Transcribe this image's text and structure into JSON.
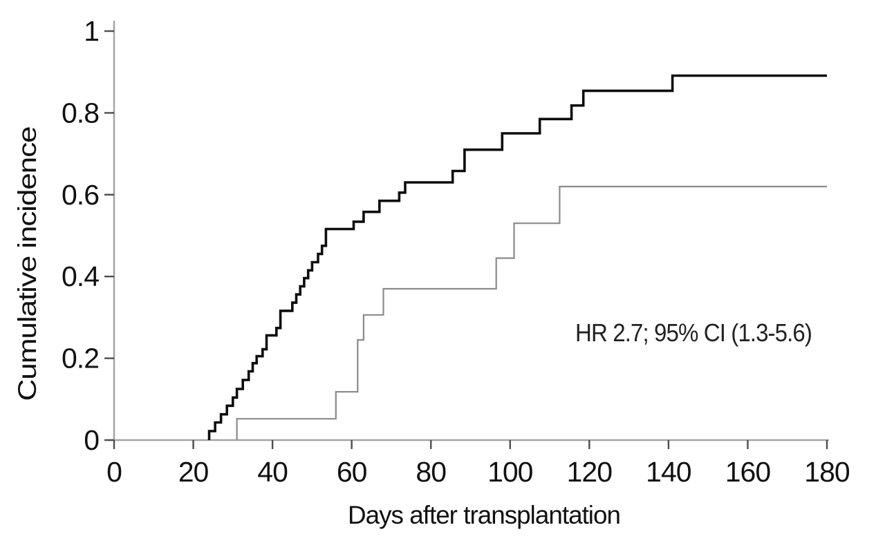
{
  "figure": {
    "background": "#ffffff"
  },
  "chart_data": {
    "type": "line",
    "subtype": "step-function-cumulative-incidence",
    "title": "",
    "xlabel": "Days after transplantation",
    "ylabel": "Cumulative incidence",
    "xlim": [
      0,
      180
    ],
    "ylim": [
      0,
      1
    ],
    "x_ticks": [
      0,
      20,
      40,
      60,
      80,
      100,
      120,
      140,
      160,
      180
    ],
    "x_tick_labels": [
      "0",
      "20",
      "40",
      "60",
      "80",
      "100",
      "120",
      "140",
      "160",
      "180"
    ],
    "y_ticks": [
      0,
      0.2,
      0.4,
      0.6,
      0.8,
      1
    ],
    "y_tick_labels": [
      "0",
      "0.2",
      "0.4",
      "0.6",
      "0.8",
      "1"
    ],
    "grid": false,
    "legend": "none",
    "annotation": {
      "text": "HR 2.7; 95% CI (1.3-5.6)",
      "x_day": 146,
      "y_value": 0.263
    },
    "axis_color": "#a3a3a3",
    "tick_color": "#4d4d4d",
    "series": [
      {
        "name": "higher-incidence-group",
        "color": "#0d0d0d",
        "stroke_width": 3.6,
        "start_day": 24,
        "end_day": 180,
        "steps": [
          [
            24,
            0.022
          ],
          [
            25.5,
            0.043
          ],
          [
            27,
            0.063
          ],
          [
            28.5,
            0.084
          ],
          [
            30,
            0.104
          ],
          [
            31,
            0.125
          ],
          [
            32.5,
            0.147
          ],
          [
            34,
            0.168
          ],
          [
            35,
            0.188
          ],
          [
            36,
            0.205
          ],
          [
            37.5,
            0.222
          ],
          [
            38.5,
            0.256
          ],
          [
            41,
            0.274
          ],
          [
            42,
            0.316
          ],
          [
            45,
            0.336
          ],
          [
            46,
            0.356
          ],
          [
            47,
            0.376
          ],
          [
            48,
            0.396
          ],
          [
            49,
            0.415
          ],
          [
            50,
            0.435
          ],
          [
            51.5,
            0.455
          ],
          [
            52.5,
            0.475
          ],
          [
            53.5,
            0.516
          ],
          [
            60.5,
            0.534
          ],
          [
            63,
            0.558
          ],
          [
            67,
            0.585
          ],
          [
            72,
            0.605
          ],
          [
            73.5,
            0.63
          ],
          [
            85.5,
            0.658
          ],
          [
            88.5,
            0.71
          ],
          [
            98,
            0.75
          ],
          [
            107.5,
            0.785
          ],
          [
            115.5,
            0.818
          ],
          [
            118.5,
            0.854
          ],
          [
            141,
            0.891
          ]
        ],
        "final_value": 0.891
      },
      {
        "name": "lower-incidence-group",
        "color": "#8a8a8a",
        "stroke_width": 2.2,
        "start_day": 31,
        "end_day": 180,
        "steps": [
          [
            31,
            0.052
          ],
          [
            56,
            0.118
          ],
          [
            61.5,
            0.245
          ],
          [
            63,
            0.306
          ],
          [
            68,
            0.37
          ],
          [
            96.5,
            0.445
          ],
          [
            101,
            0.53
          ],
          [
            112.5,
            0.62
          ]
        ],
        "final_value": 0.62
      }
    ]
  }
}
